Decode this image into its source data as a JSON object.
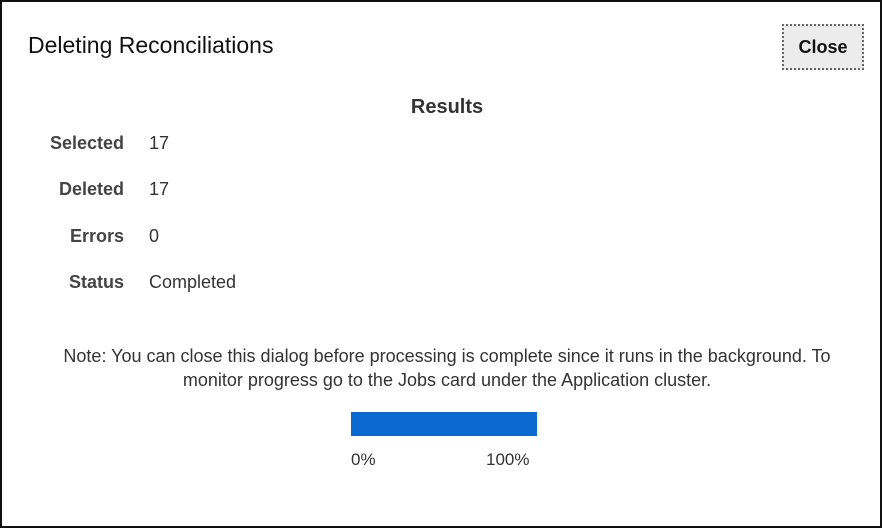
{
  "dialog": {
    "title": "Deleting Reconciliations",
    "close_label": "Close"
  },
  "results": {
    "heading": "Results",
    "rows": [
      {
        "label": "Selected",
        "value": "17"
      },
      {
        "label": "Deleted",
        "value": "17"
      },
      {
        "label": "Errors",
        "value": "0"
      },
      {
        "label": "Status",
        "value": "Completed"
      }
    ]
  },
  "note": "Note: You can close this dialog before processing is complete since it runs in the background. To monitor progress go to the Jobs card under the Application cluster.",
  "progress": {
    "percent": 100,
    "min_label": "0%",
    "max_label": "100%",
    "color": "#0a6ad2"
  }
}
